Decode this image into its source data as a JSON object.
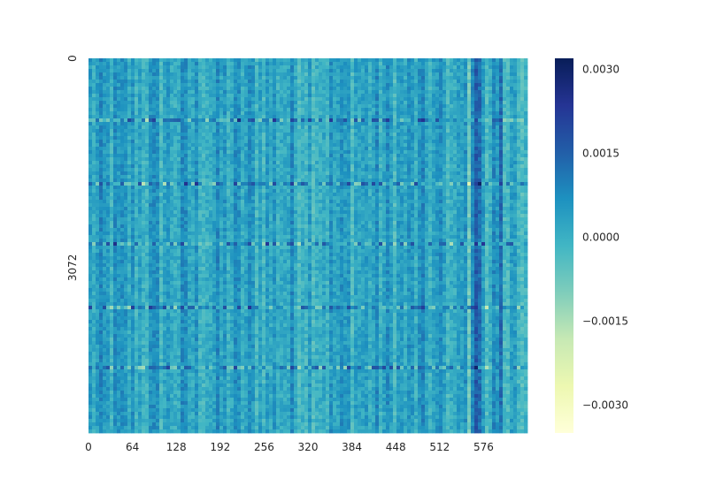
{
  "chart_data": {
    "type": "heatmap",
    "title": "",
    "xlabel": "",
    "ylabel": "",
    "x_ticks": [
      "0",
      "64",
      "128",
      "192",
      "256",
      "320",
      "384",
      "448",
      "512",
      "576"
    ],
    "y_ticks": [
      "0",
      "3072"
    ],
    "x_range": [
      0,
      640
    ],
    "y_range": [
      0,
      5500
    ],
    "value_range": [
      -0.0035,
      0.0032
    ],
    "colormap": "YlGnBu",
    "colorbar": {
      "tick_labels": [
        "0.0030",
        "0.0015",
        "0.0000",
        "−0.0015",
        "−0.0030"
      ],
      "tick_values": [
        0.003,
        0.0015,
        0.0,
        -0.0015,
        -0.003
      ]
    },
    "colors": {
      "min": "#ffffd9",
      "mid": "#41b6c4",
      "max": "#081d58"
    },
    "grid": false,
    "legend": "colorbar-right"
  }
}
